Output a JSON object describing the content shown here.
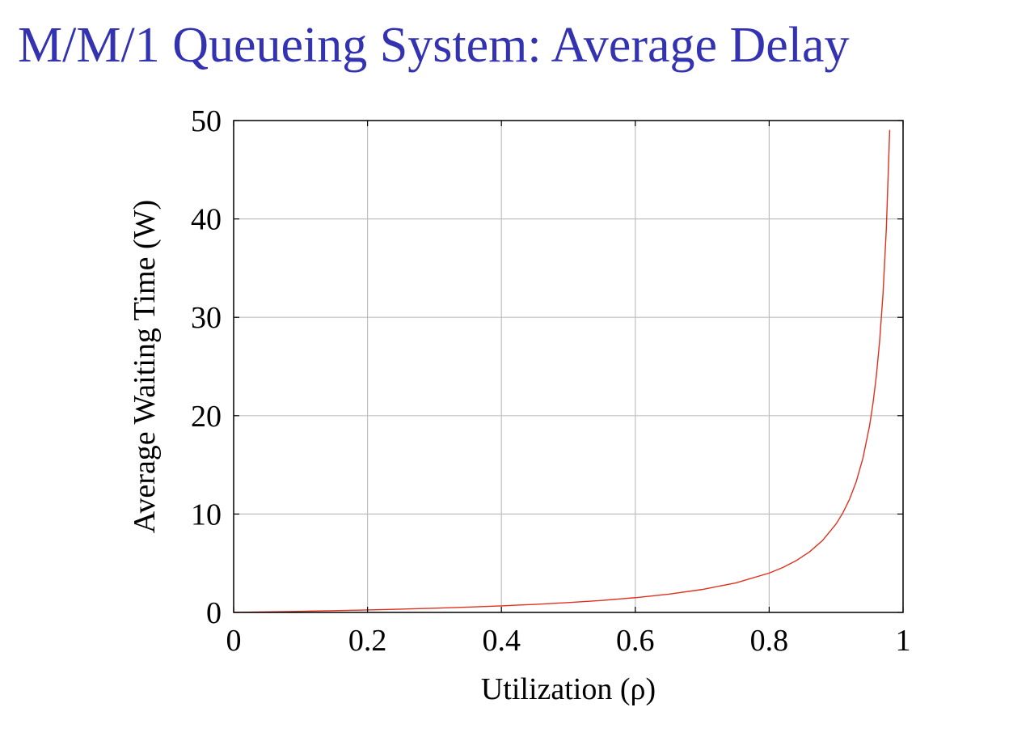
{
  "slide": {
    "title": "M/M/1 Queueing System: Average Delay",
    "title_color": "#3333b2"
  },
  "chart_data": {
    "type": "line",
    "title": "",
    "xlabel": "Utilization (ρ)",
    "ylabel": "Average Waiting Time (W)",
    "xlim": [
      0,
      1
    ],
    "ylim": [
      0,
      50
    ],
    "xticks": [
      0,
      0.2,
      0.4,
      0.6,
      0.8,
      1
    ],
    "xtick_labels": [
      "0",
      "0.2",
      "0.4",
      "0.6",
      "0.8",
      "1"
    ],
    "yticks": [
      0,
      10,
      20,
      30,
      40,
      50
    ],
    "ytick_labels": [
      "0",
      "10",
      "20",
      "30",
      "40",
      "50"
    ],
    "grid": true,
    "legend": "none",
    "series": [
      {
        "color": "#e0301e",
        "x": [
          0,
          0.05,
          0.1,
          0.15,
          0.2,
          0.25,
          0.3,
          0.35,
          0.4,
          0.45,
          0.5,
          0.55,
          0.6,
          0.65,
          0.7,
          0.75,
          0.8,
          0.82,
          0.84,
          0.86,
          0.88,
          0.9,
          0.91,
          0.92,
          0.93,
          0.94,
          0.95,
          0.955,
          0.96,
          0.965,
          0.97,
          0.975,
          0.98
        ],
        "y": [
          0,
          0.053,
          0.111,
          0.176,
          0.25,
          0.333,
          0.429,
          0.538,
          0.667,
          0.818,
          1.0,
          1.222,
          1.5,
          1.857,
          2.333,
          3.0,
          4.0,
          4.556,
          5.25,
          6.143,
          7.333,
          9.0,
          10.111,
          11.5,
          13.286,
          15.667,
          19.0,
          21.222,
          24.0,
          27.571,
          32.333,
          39.0,
          49.0
        ]
      }
    ]
  }
}
